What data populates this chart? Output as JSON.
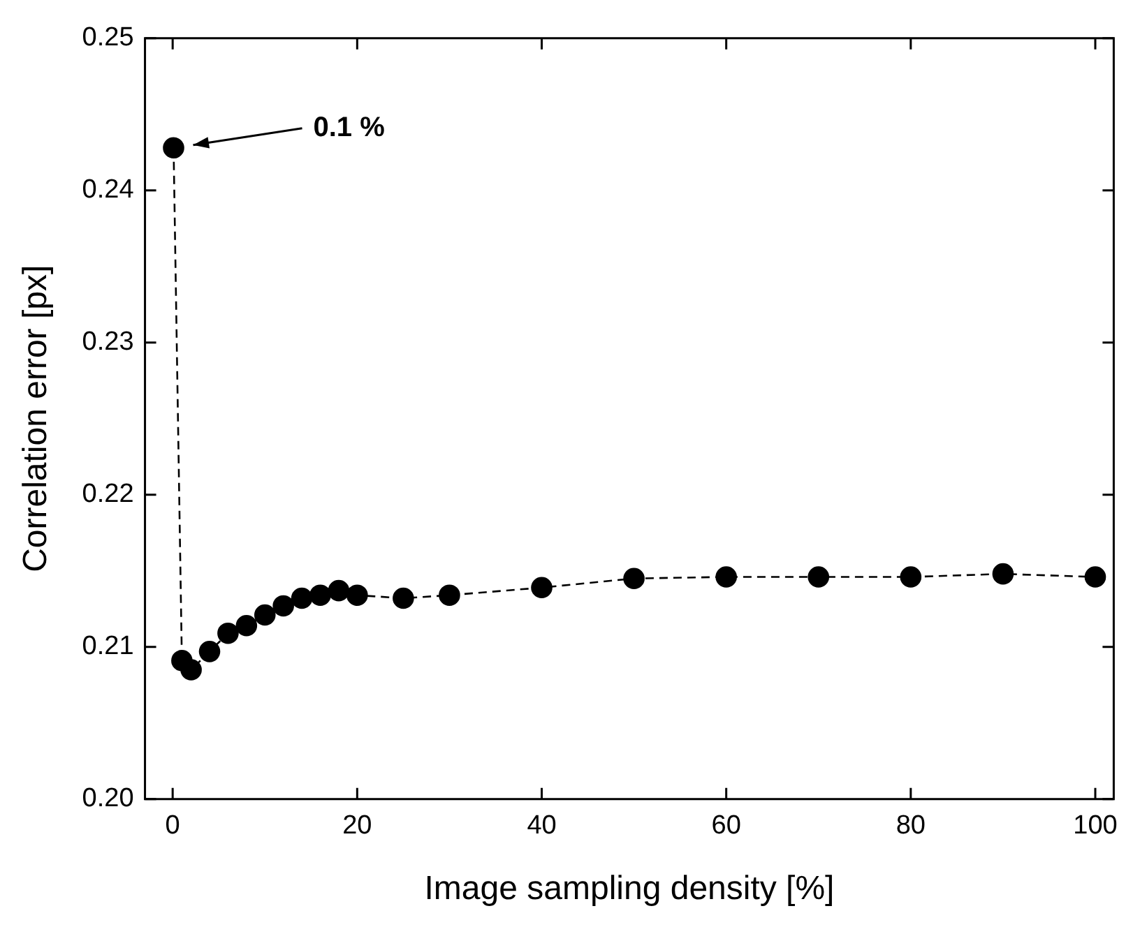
{
  "chart_data": {
    "type": "line",
    "xlabel": "Image sampling density [%]",
    "ylabel": "Correlation error [px]",
    "x": [
      0.1,
      1,
      2,
      4,
      6,
      8,
      10,
      12,
      14,
      16,
      18,
      20,
      25,
      30,
      40,
      50,
      60,
      70,
      80,
      90,
      100
    ],
    "series": [
      {
        "color": "#000000",
        "values": [
          0.2428,
          0.2091,
          0.2085,
          0.2097,
          0.2109,
          0.2114,
          0.2121,
          0.2127,
          0.2132,
          0.2134,
          0.2137,
          0.2134,
          0.2132,
          0.2134,
          0.2139,
          0.2145,
          0.2146,
          0.2146,
          0.2146,
          0.2148,
          0.2146
        ]
      }
    ],
    "xlim": [
      -3,
      102
    ],
    "xticks": [
      0,
      20,
      40,
      60,
      80,
      100
    ],
    "ylim": [
      0.2,
      0.25
    ],
    "yticks": [
      {
        "value": 0.2,
        "label": "0.20"
      },
      {
        "value": 0.21,
        "label": "0.21"
      },
      {
        "value": 0.22,
        "label": "0.22"
      },
      {
        "value": 0.23,
        "label": "0.23"
      },
      {
        "value": 0.24,
        "label": "0.24"
      },
      {
        "value": 0.25,
        "label": "0.25"
      }
    ],
    "grid": false,
    "legend": false,
    "marker": "circle",
    "line_style": "dashed",
    "annotations": [
      "0.1 %"
    ]
  }
}
